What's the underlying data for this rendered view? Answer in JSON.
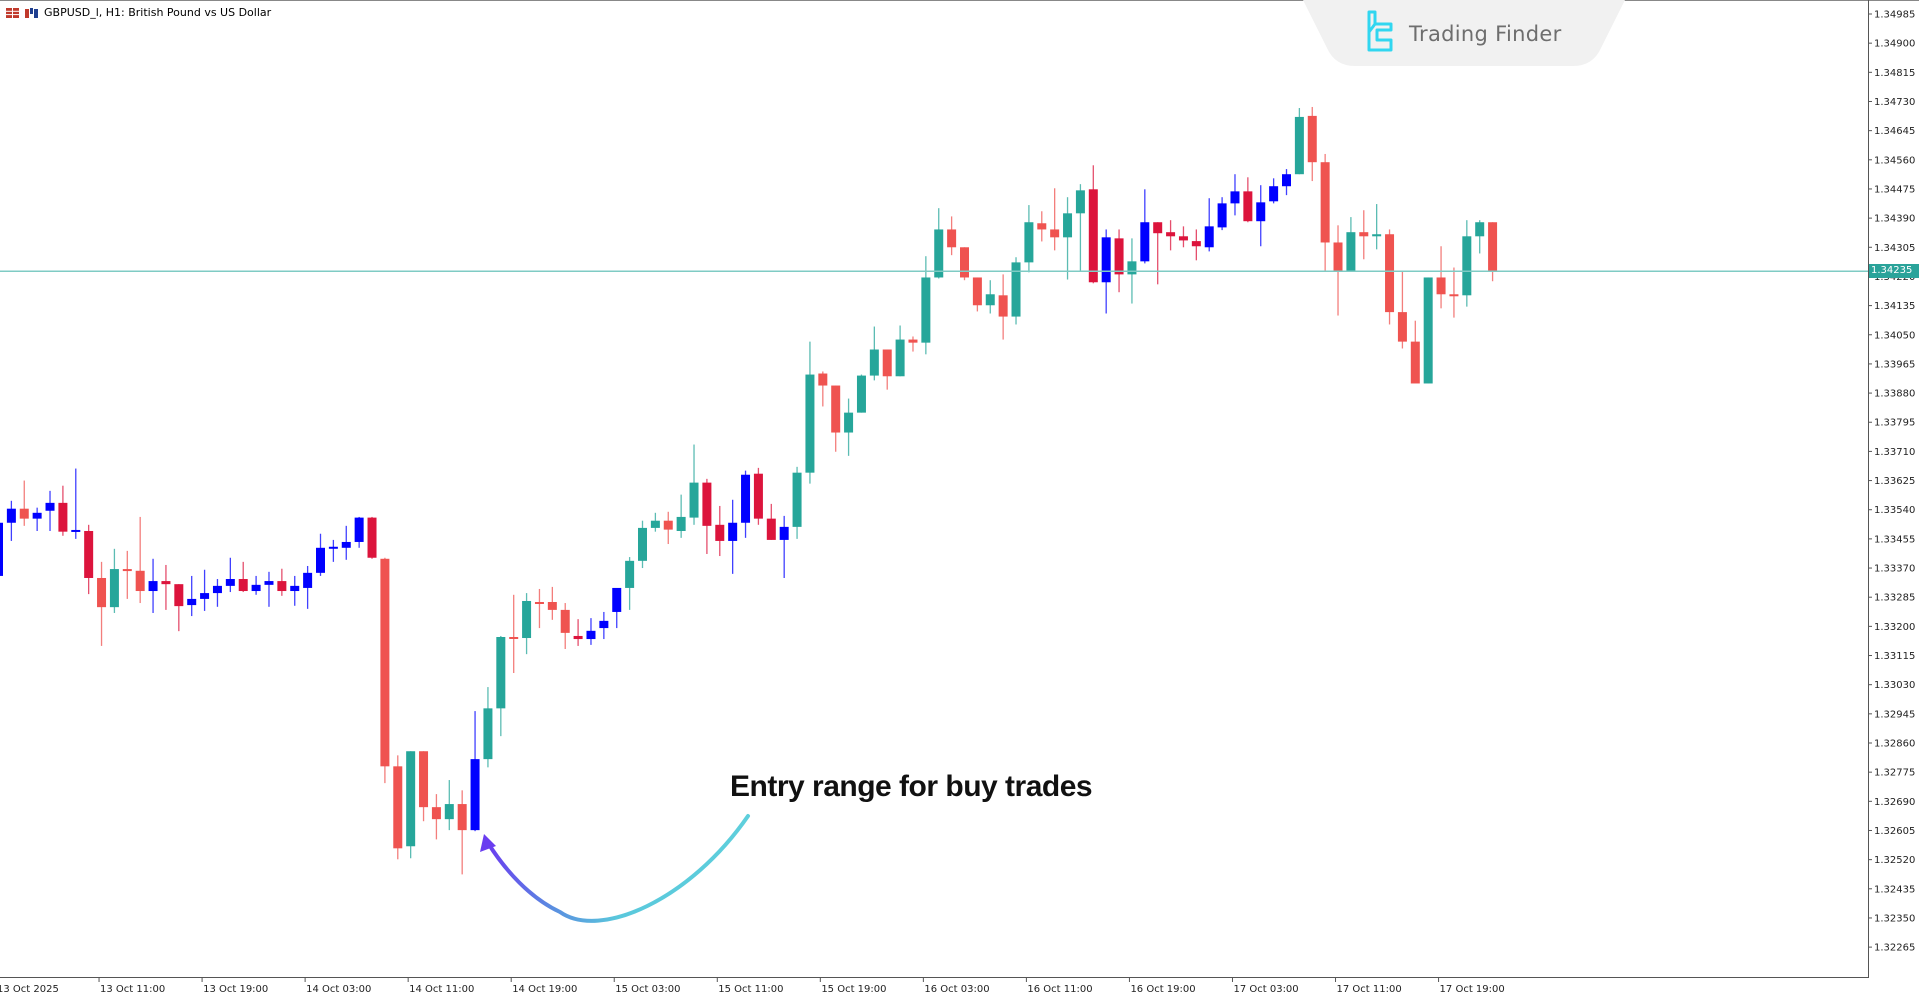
{
  "window": {
    "title": "GBPUSD_l, H1:  British Pound vs US Dollar",
    "symbol": "GBPUSD_l",
    "timeframe": "H1",
    "description": "British Pound vs US Dollar"
  },
  "watermark": {
    "brand": "Trading Finder"
  },
  "annotation": {
    "text": "Entry range for buy trades"
  },
  "current_price": {
    "label": "1.34235",
    "value": 1.34235
  },
  "colors": {
    "bull": "#26a69a",
    "bear": "#ef5350",
    "bull_alt": "#0000ff",
    "bear_alt": "#dc143c",
    "price_line": "#7fcbc4",
    "axis": "#555555"
  },
  "chart_data": {
    "type": "candlestick",
    "title": "GBPUSD_l, H1: British Pound vs US Dollar",
    "xlabel": "",
    "ylabel": "",
    "ylim": [
      1.3222,
      1.3501
    ],
    "grid": false,
    "legend": "none",
    "y_ticks": [
      "1.34985",
      "1.34900",
      "1.34815",
      "1.34730",
      "1.34645",
      "1.34560",
      "1.34475",
      "1.34390",
      "1.34305",
      "1.34220",
      "1.34135",
      "1.34050",
      "1.33965",
      "1.33880",
      "1.33795",
      "1.33710",
      "1.33625",
      "1.33540",
      "1.33455",
      "1.33370",
      "1.33285",
      "1.33200",
      "1.33115",
      "1.33030",
      "1.32945",
      "1.32860",
      "1.32775",
      "1.32690",
      "1.32605",
      "1.32520",
      "1.32435",
      "1.32350",
      "1.32265"
    ],
    "x_ticks": [
      {
        "label": "13 Oct 2025",
        "index": 0
      },
      {
        "label": "13 Oct 11:00",
        "index": 8
      },
      {
        "label": "13 Oct 19:00",
        "index": 16
      },
      {
        "label": "14 Oct 03:00",
        "index": 24
      },
      {
        "label": "14 Oct 11:00",
        "index": 32
      },
      {
        "label": "14 Oct 19:00",
        "index": 40
      },
      {
        "label": "15 Oct 03:00",
        "index": 48
      },
      {
        "label": "15 Oct 11:00",
        "index": 56
      },
      {
        "label": "15 Oct 19:00",
        "index": 64
      },
      {
        "label": "16 Oct 03:00",
        "index": 72
      },
      {
        "label": "16 Oct 11:00",
        "index": 80
      },
      {
        "label": "16 Oct 19:00",
        "index": 88
      },
      {
        "label": "17 Oct 03:00",
        "index": 96
      },
      {
        "label": "17 Oct 11:00",
        "index": 104
      },
      {
        "label": "17 Oct 19:00",
        "index": 112
      }
    ],
    "horizontal_lines": [
      {
        "price": 1.34235,
        "label": "1.34235"
      }
    ],
    "candles_note": "each candle: [open, high, low, close, style] where style b=teal bull, r=red bear, B=blue bull, R=crimson bear",
    "candles": [
      [
        1.33347,
        1.33508,
        1.33347,
        1.33502,
        "B"
      ],
      [
        1.33502,
        1.33566,
        1.33449,
        1.33543,
        "B"
      ],
      [
        1.33543,
        1.33625,
        1.33493,
        1.33514,
        "r"
      ],
      [
        1.33514,
        1.33546,
        1.33478,
        1.33531,
        "B"
      ],
      [
        1.33537,
        1.33595,
        1.33478,
        1.3356,
        "B"
      ],
      [
        1.3356,
        1.3361,
        1.33464,
        1.33476,
        "R"
      ],
      [
        1.33476,
        1.3366,
        1.33455,
        1.33481,
        "B"
      ],
      [
        1.33478,
        1.33496,
        1.33294,
        1.33341,
        "R"
      ],
      [
        1.33341,
        1.33388,
        1.33143,
        1.33256,
        "r"
      ],
      [
        1.33256,
        1.33426,
        1.33239,
        1.33367,
        "b"
      ],
      [
        1.33367,
        1.3342,
        1.3328,
        1.33362,
        "r"
      ],
      [
        1.33362,
        1.33519,
        1.33268,
        1.33303,
        "r"
      ],
      [
        1.33303,
        1.33397,
        1.33239,
        1.33332,
        "B"
      ],
      [
        1.33332,
        1.33379,
        1.33248,
        1.33323,
        "R"
      ],
      [
        1.33323,
        1.33323,
        1.33186,
        1.33259,
        "R"
      ],
      [
        1.33262,
        1.33347,
        1.3323,
        1.3328,
        "B"
      ],
      [
        1.3328,
        1.33365,
        1.33245,
        1.33297,
        "B"
      ],
      [
        1.33297,
        1.33338,
        1.33257,
        1.33318,
        "B"
      ],
      [
        1.33318,
        1.334,
        1.333,
        1.33338,
        "B"
      ],
      [
        1.33338,
        1.33388,
        1.333,
        1.33303,
        "R"
      ],
      [
        1.33303,
        1.33347,
        1.33292,
        1.33321,
        "B"
      ],
      [
        1.33321,
        1.33359,
        1.33257,
        1.33332,
        "B"
      ],
      [
        1.33332,
        1.33368,
        1.33289,
        1.33303,
        "R"
      ],
      [
        1.33303,
        1.33347,
        1.3326,
        1.33318,
        "B"
      ],
      [
        1.33312,
        1.33376,
        1.33251,
        1.33356,
        "B"
      ],
      [
        1.33356,
        1.3347,
        1.33347,
        1.33429,
        "B"
      ],
      [
        1.33429,
        1.33452,
        1.33388,
        1.33432,
        "B"
      ],
      [
        1.33429,
        1.33493,
        1.33394,
        1.33446,
        "B"
      ],
      [
        1.33446,
        1.33519,
        1.33429,
        1.33517,
        "B"
      ],
      [
        1.33517,
        1.33519,
        1.33397,
        1.334,
        "R"
      ],
      [
        1.33397,
        1.334,
        1.32743,
        1.32792,
        "r"
      ],
      [
        1.32792,
        1.32824,
        1.32521,
        1.32553,
        "r"
      ],
      [
        1.32559,
        1.32836,
        1.32524,
        1.32836,
        "b"
      ],
      [
        1.32836,
        1.32836,
        1.32632,
        1.32673,
        "r"
      ],
      [
        1.32673,
        1.32711,
        1.32579,
        1.32638,
        "r"
      ],
      [
        1.32638,
        1.32752,
        1.32606,
        1.32682,
        "b"
      ],
      [
        1.32682,
        1.32722,
        1.32477,
        1.32606,
        "r"
      ],
      [
        1.32606,
        1.32953,
        1.32603,
        1.32813,
        "B"
      ],
      [
        1.32813,
        1.33023,
        1.32789,
        1.32961,
        "b"
      ],
      [
        1.32961,
        1.33172,
        1.3288,
        1.33169,
        "b"
      ],
      [
        1.33169,
        1.33292,
        1.33064,
        1.33166,
        "r"
      ],
      [
        1.33166,
        1.33297,
        1.33119,
        1.33274,
        "b"
      ],
      [
        1.33271,
        1.33309,
        1.33195,
        1.33268,
        "r"
      ],
      [
        1.33271,
        1.33315,
        1.33219,
        1.33248,
        "r"
      ],
      [
        1.33248,
        1.33268,
        1.33134,
        1.33181,
        "r"
      ],
      [
        1.33172,
        1.33221,
        1.33143,
        1.33163,
        "R"
      ],
      [
        1.33163,
        1.33224,
        1.33146,
        1.33187,
        "B"
      ],
      [
        1.33195,
        1.33242,
        1.33163,
        1.33216,
        "B"
      ],
      [
        1.33242,
        1.33303,
        1.33195,
        1.33312,
        "B"
      ],
      [
        1.33312,
        1.33402,
        1.33248,
        1.33391,
        "b"
      ],
      [
        1.33391,
        1.33508,
        1.3337,
        1.33487,
        "b"
      ],
      [
        1.33487,
        1.33531,
        1.33476,
        1.33508,
        "b"
      ],
      [
        1.33508,
        1.33534,
        1.3344,
        1.33482,
        "r"
      ],
      [
        1.33478,
        1.33584,
        1.33458,
        1.33519,
        "b"
      ],
      [
        1.33517,
        1.3373,
        1.33496,
        1.33619,
        "b"
      ],
      [
        1.33619,
        1.3363,
        1.33411,
        1.33493,
        "R"
      ],
      [
        1.33496,
        1.33551,
        1.33405,
        1.33449,
        "R"
      ],
      [
        1.33449,
        1.33569,
        1.33353,
        1.33502,
        "B"
      ],
      [
        1.33502,
        1.33654,
        1.33458,
        1.33642,
        "B"
      ],
      [
        1.33645,
        1.33662,
        1.33496,
        1.33514,
        "R"
      ],
      [
        1.33514,
        1.33557,
        1.33452,
        1.33452,
        "R"
      ],
      [
        1.33452,
        1.33522,
        1.33341,
        1.3349,
        "B"
      ],
      [
        1.3349,
        1.33665,
        1.33455,
        1.33648,
        "b"
      ],
      [
        1.33648,
        1.3403,
        1.33616,
        1.33934,
        "b"
      ],
      [
        1.33937,
        1.33943,
        1.33841,
        1.33902,
        "r"
      ],
      [
        1.33902,
        1.33902,
        1.33709,
        1.33765,
        "r"
      ],
      [
        1.33765,
        1.33864,
        1.33697,
        1.33823,
        "b"
      ],
      [
        1.33823,
        1.33934,
        1.33823,
        1.33931,
        "b"
      ],
      [
        1.33931,
        1.34074,
        1.33917,
        1.34007,
        "b"
      ],
      [
        1.34007,
        1.34007,
        1.3389,
        1.33929,
        "r"
      ],
      [
        1.33929,
        1.34077,
        1.33929,
        1.34036,
        "b"
      ],
      [
        1.34036,
        1.34045,
        1.34001,
        1.34027,
        "r"
      ],
      [
        1.34027,
        1.34279,
        1.33993,
        1.34217,
        "b"
      ],
      [
        1.34217,
        1.34419,
        1.34214,
        1.34357,
        "b"
      ],
      [
        1.34357,
        1.34395,
        1.34282,
        1.34305,
        "r"
      ],
      [
        1.34305,
        1.34305,
        1.34209,
        1.34217,
        "r"
      ],
      [
        1.34217,
        1.34217,
        1.34118,
        1.34136,
        "r"
      ],
      [
        1.34136,
        1.34209,
        1.34112,
        1.34168,
        "b"
      ],
      [
        1.34165,
        1.34226,
        1.34036,
        1.34103,
        "r"
      ],
      [
        1.34103,
        1.34276,
        1.3408,
        1.34261,
        "b"
      ],
      [
        1.34261,
        1.34428,
        1.34232,
        1.34378,
        "b"
      ],
      [
        1.34375,
        1.3441,
        1.34322,
        1.34357,
        "r"
      ],
      [
        1.34357,
        1.34477,
        1.34296,
        1.34334,
        "r"
      ],
      [
        1.34334,
        1.34451,
        1.34211,
        1.34404,
        "b"
      ],
      [
        1.34404,
        1.34489,
        1.34235,
        1.34471,
        "b"
      ],
      [
        1.34474,
        1.34544,
        1.342,
        1.34203,
        "R"
      ],
      [
        1.34203,
        1.34357,
        1.34112,
        1.34334,
        "B"
      ],
      [
        1.34331,
        1.34357,
        1.34174,
        1.34226,
        "R"
      ],
      [
        1.34226,
        1.34331,
        1.34141,
        1.34264,
        "b"
      ],
      [
        1.34264,
        1.34474,
        1.34258,
        1.34378,
        "B"
      ],
      [
        1.34378,
        1.34378,
        1.34197,
        1.34346,
        "R"
      ],
      [
        1.34349,
        1.34384,
        1.34296,
        1.34337,
        "R"
      ],
      [
        1.34337,
        1.34366,
        1.34305,
        1.34325,
        "R"
      ],
      [
        1.34323,
        1.34357,
        1.34267,
        1.34308,
        "R"
      ],
      [
        1.34305,
        1.34448,
        1.34293,
        1.34366,
        "B"
      ],
      [
        1.34363,
        1.34451,
        1.34355,
        1.34433,
        "B"
      ],
      [
        1.34433,
        1.34518,
        1.34398,
        1.34468,
        "B"
      ],
      [
        1.34468,
        1.34509,
        1.34378,
        1.34381,
        "R"
      ],
      [
        1.34381,
        1.34486,
        1.34308,
        1.34436,
        "B"
      ],
      [
        1.34439,
        1.34506,
        1.34433,
        1.34483,
        "B"
      ],
      [
        1.34483,
        1.34533,
        1.34457,
        1.34518,
        "B"
      ],
      [
        1.34518,
        1.34711,
        1.34518,
        1.34685,
        "b"
      ],
      [
        1.34688,
        1.34714,
        1.34498,
        1.34553,
        "r"
      ],
      [
        1.34553,
        1.34577,
        1.34235,
        1.34319,
        "r"
      ],
      [
        1.34319,
        1.34369,
        1.34106,
        1.34235,
        "r"
      ],
      [
        1.34235,
        1.34393,
        1.34235,
        1.34349,
        "b"
      ],
      [
        1.34349,
        1.34413,
        1.3427,
        1.34337,
        "r"
      ],
      [
        1.34337,
        1.34431,
        1.34299,
        1.34343,
        "b"
      ],
      [
        1.34343,
        1.34357,
        1.3408,
        1.34116,
        "r"
      ],
      [
        1.34116,
        1.34235,
        1.3401,
        1.3403,
        "r"
      ],
      [
        1.3403,
        1.34091,
        1.3391,
        1.33908,
        "r"
      ],
      [
        1.33908,
        1.34217,
        1.33908,
        1.34217,
        "b"
      ],
      [
        1.34217,
        1.34308,
        1.34127,
        1.34168,
        "r"
      ],
      [
        1.34168,
        1.34246,
        1.341,
        1.34165,
        "r"
      ],
      [
        1.34165,
        1.34384,
        1.34132,
        1.34337,
        "b"
      ],
      [
        1.34337,
        1.34384,
        1.34287,
        1.34378,
        "b"
      ],
      [
        1.34378,
        1.34378,
        1.34206,
        1.34235,
        "r"
      ]
    ]
  }
}
